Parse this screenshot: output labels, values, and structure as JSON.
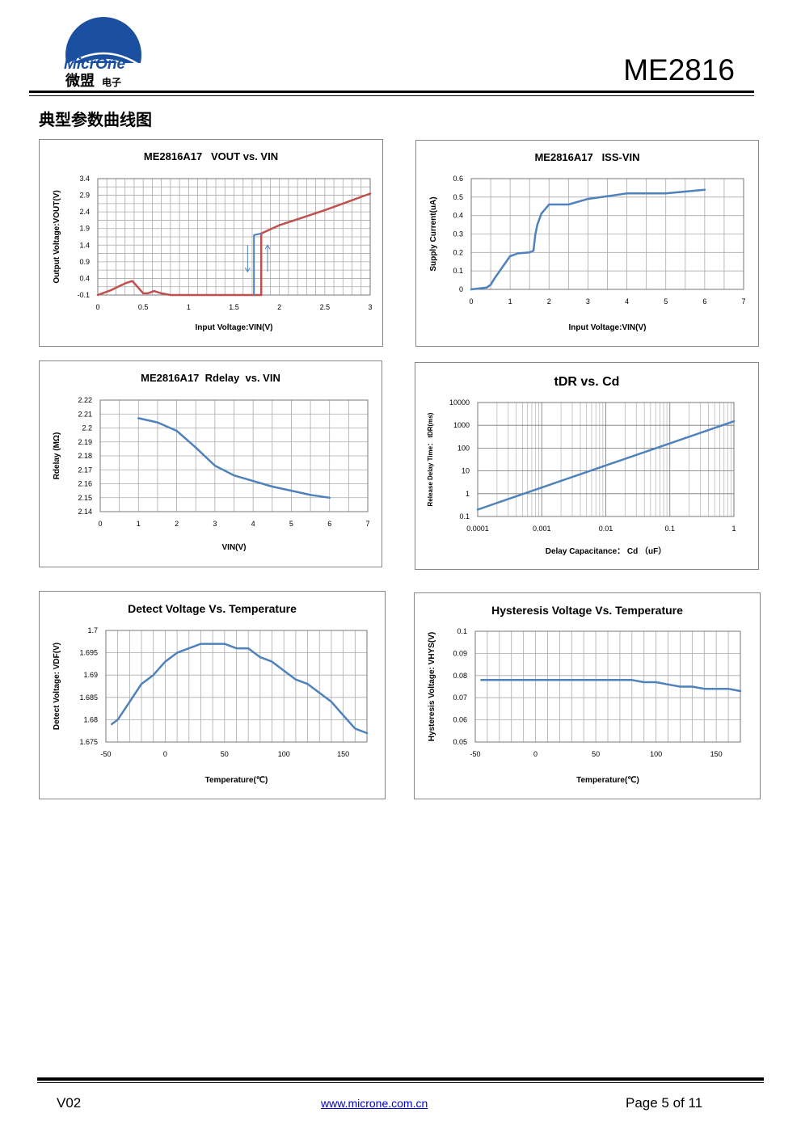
{
  "header": {
    "logo_text_en": "MicrOne",
    "logo_text_cn": "微盟",
    "logo_text_cn_small": "电子",
    "model": "ME2816"
  },
  "section_title": "典型参数曲线图",
  "charts": [
    {
      "title": "ME2816A17   VOUT vs. VIN",
      "xlabel": "Input Voltage:VIN(V)",
      "ylabel": "Output Voltage:VOUT(V)",
      "xticks": [
        "0",
        "0.5",
        "1",
        "1.5",
        "2",
        "2.5",
        "3"
      ],
      "yticks": [
        "3.4",
        "2.9",
        "2.4",
        "1.9",
        "1.4",
        "0.9",
        "0.4",
        "-0.1"
      ]
    },
    {
      "title": "ME2816A17   ISS-VIN",
      "xlabel": "Input Voltage:VIN(V)",
      "ylabel": "Supply Current(uA)",
      "xticks": [
        "0",
        "1",
        "2",
        "3",
        "4",
        "5",
        "6",
        "7"
      ],
      "yticks": [
        "0.6",
        "0.5",
        "0.4",
        "0.3",
        "0.2",
        "0.1",
        "0"
      ]
    },
    {
      "title": "ME2816A17  Rdelay  vs. VIN",
      "xlabel": "VIN(V)",
      "ylabel": "Rdelay (MΩ)",
      "xticks": [
        "0",
        "1",
        "2",
        "3",
        "4",
        "5",
        "6",
        "7"
      ],
      "yticks": [
        "2.22",
        "2.21",
        "2.2",
        "2.19",
        "2.18",
        "2.17",
        "2.16",
        "2.15",
        "2.14"
      ]
    },
    {
      "title": "tDR vs. Cd",
      "xlabel": "Delay Capacitance： Cd （uF）",
      "ylabel": "Release Delay Time： tDR(ms)",
      "xticks": [
        "0.0001",
        "0.001",
        "0.01",
        "0.1",
        "1"
      ],
      "yticks": [
        "10000",
        "1000",
        "100",
        "10",
        "1",
        "0.1"
      ]
    },
    {
      "title": "Detect Voltage Vs. Temperature",
      "xlabel": "Temperature(℃)",
      "ylabel": "Detect Voltage: VDF(V)",
      "xticks": [
        "-50",
        "0",
        "50",
        "100",
        "150"
      ],
      "yticks": [
        "1.7",
        "1.695",
        "1.69",
        "1.685",
        "1.68",
        "1.675"
      ]
    },
    {
      "title": "Hysteresis Voltage Vs. Temperature",
      "xlabel": "Temperature(℃)",
      "ylabel": "Hysteresis  Voltage: VHYS(V)",
      "xticks": [
        "-50",
        "0",
        "50",
        "100",
        "150"
      ],
      "yticks": [
        "0.1",
        "0.09",
        "0.08",
        "0.07",
        "0.06",
        "0.05"
      ]
    }
  ],
  "chart_data": [
    {
      "type": "line",
      "title": "ME2816A17   VOUT vs. VIN",
      "xlabel": "Input Voltage:VIN(V)",
      "ylabel": "Output Voltage:VOUT(V)",
      "xlim": [
        0,
        3
      ],
      "ylim": [
        -0.1,
        3.4
      ],
      "grid": true,
      "series": [
        {
          "color": "#c0504d",
          "x": [
            0,
            0.15,
            0.3,
            0.38,
            0.42,
            0.5,
            0.55,
            0.62,
            0.7,
            0.8,
            1.0,
            1.3,
            1.6,
            1.8
          ],
          "y": [
            -0.1,
            0.05,
            0.25,
            0.32,
            0.2,
            -0.05,
            -0.05,
            0.02,
            -0.05,
            -0.1,
            -0.1,
            -0.1,
            -0.1,
            -0.1
          ]
        },
        {
          "color": "#c0504d",
          "x": [
            1.8,
            1.8,
            2.0,
            2.5,
            3.0
          ],
          "y": [
            -0.1,
            1.75,
            2.0,
            2.45,
            2.95
          ]
        },
        {
          "color": "#4f81bd",
          "x": [
            1.72,
            1.72,
            1.8
          ],
          "y": [
            -0.1,
            1.7,
            1.75
          ]
        }
      ]
    },
    {
      "type": "line",
      "title": "ME2816A17   ISS-VIN",
      "xlabel": "Input Voltage:VIN(V)",
      "ylabel": "Supply Current(uA)",
      "xlim": [
        0,
        7
      ],
      "ylim": [
        0,
        0.6
      ],
      "grid": true,
      "series": [
        {
          "color": "#4f81bd",
          "x": [
            0,
            0.2,
            0.4,
            0.5,
            0.6,
            0.8,
            1.0,
            1.2,
            1.5,
            1.6,
            1.65,
            1.7,
            1.8,
            2.0,
            2.2,
            2.5,
            3.0,
            4.0,
            5.0,
            6.0
          ],
          "y": [
            0,
            0.005,
            0.01,
            0.025,
            0.06,
            0.12,
            0.18,
            0.195,
            0.2,
            0.21,
            0.3,
            0.35,
            0.41,
            0.46,
            0.46,
            0.46,
            0.49,
            0.52,
            0.52,
            0.54
          ]
        }
      ]
    },
    {
      "type": "line",
      "title": "ME2816A17  Rdelay  vs. VIN",
      "xlabel": "VIN(V)",
      "ylabel": "Rdelay (MΩ)",
      "xlim": [
        0,
        7
      ],
      "ylim": [
        2.14,
        2.22
      ],
      "grid": true,
      "series": [
        {
          "color": "#4f81bd",
          "x": [
            1.0,
            1.5,
            2.0,
            2.5,
            3.0,
            3.5,
            4.0,
            4.5,
            5.0,
            5.5,
            6.0
          ],
          "y": [
            2.207,
            2.204,
            2.198,
            2.186,
            2.173,
            2.166,
            2.162,
            2.158,
            2.155,
            2.152,
            2.15
          ]
        }
      ]
    },
    {
      "type": "line",
      "title": "tDR vs. Cd",
      "xlabel": "Delay Capacitance： Cd （uF）",
      "ylabel": "Release Delay Time： tDR(ms)",
      "xscale": "log",
      "yscale": "log",
      "xlim": [
        0.0001,
        1
      ],
      "ylim": [
        0.1,
        10000
      ],
      "grid": true,
      "series": [
        {
          "color": "#4f81bd",
          "x": [
            0.0001,
            1
          ],
          "y": [
            0.2,
            1500
          ]
        }
      ]
    },
    {
      "type": "line",
      "title": "Detect Voltage Vs. Temperature",
      "xlabel": "Temperature(℃)",
      "ylabel": "Detect Voltage: VDF(V)",
      "xlim": [
        -50,
        170
      ],
      "ylim": [
        1.675,
        1.7
      ],
      "grid": true,
      "series": [
        {
          "color": "#4f81bd",
          "x": [
            -45,
            -40,
            -30,
            -20,
            -10,
            0,
            10,
            20,
            30,
            40,
            50,
            60,
            70,
            80,
            90,
            100,
            110,
            120,
            130,
            140,
            150,
            160,
            170
          ],
          "y": [
            1.679,
            1.68,
            1.684,
            1.688,
            1.69,
            1.693,
            1.695,
            1.696,
            1.697,
            1.697,
            1.697,
            1.696,
            1.696,
            1.694,
            1.693,
            1.691,
            1.689,
            1.688,
            1.686,
            1.684,
            1.681,
            1.678,
            1.677
          ]
        }
      ]
    },
    {
      "type": "line",
      "title": "Hysteresis Voltage Vs. Temperature",
      "xlabel": "Temperature(℃)",
      "ylabel": "Hysteresis  Voltage: VHYS(V)",
      "xlim": [
        -50,
        170
      ],
      "ylim": [
        0.05,
        0.1
      ],
      "grid": true,
      "series": [
        {
          "color": "#4f81bd",
          "x": [
            -45,
            -30,
            0,
            30,
            60,
            80,
            90,
            100,
            110,
            120,
            130,
            140,
            150,
            160,
            170
          ],
          "y": [
            0.078,
            0.078,
            0.078,
            0.078,
            0.078,
            0.078,
            0.077,
            0.077,
            0.076,
            0.075,
            0.075,
            0.074,
            0.074,
            0.074,
            0.073
          ]
        }
      ]
    }
  ],
  "footer": {
    "version": "V02",
    "website": "www.microne.com.cn",
    "page": "Page 5 of 11"
  }
}
